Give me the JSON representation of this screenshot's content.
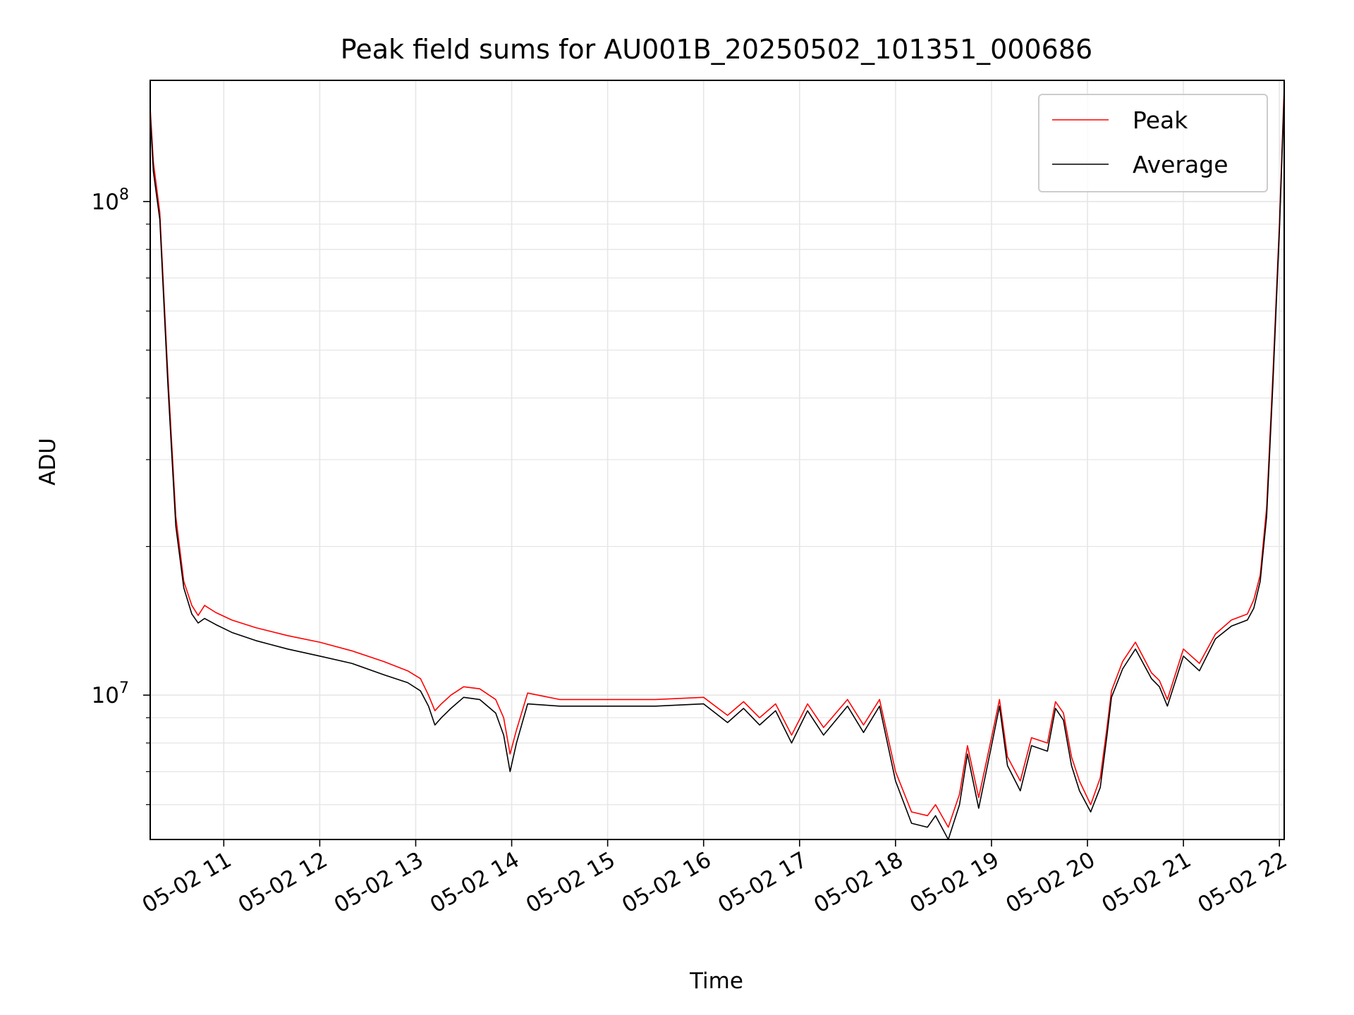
{
  "chart_data": {
    "type": "line",
    "title": "Peak field sums for AU001B_20250502_101351_000686",
    "xlabel": "Time",
    "ylabel": "ADU",
    "yscale": "log",
    "xlim": [
      "2025-05-02 10:14",
      "2025-05-02 22:03"
    ],
    "ylim": [
      5100000,
      176000000
    ],
    "grid": true,
    "legend_position": "top-right",
    "x_ticks": [
      "05-02 11",
      "05-02 12",
      "05-02 13",
      "05-02 14",
      "05-02 15",
      "05-02 16",
      "05-02 17",
      "05-02 18",
      "05-02 19",
      "05-02 20",
      "05-02 21",
      "05-02 22"
    ],
    "x_tick_hours": [
      11,
      12,
      13,
      14,
      15,
      16,
      17,
      18,
      19,
      20,
      21,
      22
    ],
    "y_ticks": [
      {
        "value": 10000000,
        "base": "10",
        "exp": "7"
      },
      {
        "value": 100000000,
        "base": "10",
        "exp": "8"
      }
    ],
    "series": [
      {
        "name": "Peak",
        "color": "#ff0000",
        "x": [
          "10:14",
          "10:16",
          "10:20",
          "10:25",
          "10:30",
          "10:35",
          "10:40",
          "10:44",
          "10:48",
          "10:55",
          "11:05",
          "11:20",
          "11:40",
          "12:00",
          "12:20",
          "12:40",
          "12:55",
          "13:03",
          "13:08",
          "13:12",
          "13:16",
          "13:22",
          "13:30",
          "13:40",
          "13:50",
          "13:55",
          "13:59",
          "14:03",
          "14:10",
          "14:30",
          "15:00",
          "15:30",
          "16:00",
          "16:15",
          "16:25",
          "16:35",
          "16:45",
          "16:55",
          "17:05",
          "17:15",
          "17:30",
          "17:40",
          "17:50",
          "18:00",
          "18:10",
          "18:20",
          "18:25",
          "18:33",
          "18:40",
          "18:45",
          "18:52",
          "19:00",
          "19:05",
          "19:10",
          "19:18",
          "19:25",
          "19:35",
          "19:40",
          "19:45",
          "19:50",
          "19:55",
          "20:02",
          "20:08",
          "20:12",
          "20:15",
          "20:22",
          "20:30",
          "20:40",
          "20:45",
          "20:50",
          "21:00",
          "21:10",
          "21:20",
          "21:30",
          "21:40",
          "21:44",
          "21:48",
          "21:52",
          "21:56",
          "22:00",
          "22:03"
        ],
        "y": [
          155000000,
          120000000,
          95000000,
          45000000,
          23000000,
          17000000,
          15200000,
          14500000,
          15200000,
          14700000,
          14200000,
          13700000,
          13200000,
          12800000,
          12300000,
          11700000,
          11200000,
          10800000,
          10000000,
          9300000,
          9600000,
          10000000,
          10400000,
          10300000,
          9800000,
          9000000,
          7600000,
          8500000,
          10100000,
          9800000,
          9800000,
          9800000,
          9900000,
          9100000,
          9700000,
          9000000,
          9600000,
          8300000,
          9600000,
          8600000,
          9800000,
          8700000,
          9800000,
          7000000,
          5800000,
          5700000,
          6000000,
          5400000,
          6300000,
          7900000,
          6200000,
          8200000,
          9800000,
          7500000,
          6700000,
          8200000,
          8000000,
          9700000,
          9200000,
          7500000,
          6700000,
          6000000,
          6800000,
          8500000,
          10200000,
          11700000,
          12800000,
          11100000,
          10700000,
          9800000,
          12400000,
          11600000,
          13300000,
          14200000,
          14600000,
          15600000,
          17500000,
          24000000,
          45000000,
          90000000,
          170000000
        ]
      },
      {
        "name": "Average",
        "color": "#000000",
        "x": [
          "10:14",
          "10:16",
          "10:20",
          "10:25",
          "10:30",
          "10:35",
          "10:40",
          "10:44",
          "10:48",
          "10:55",
          "11:05",
          "11:20",
          "11:40",
          "12:00",
          "12:20",
          "12:40",
          "12:55",
          "13:03",
          "13:08",
          "13:12",
          "13:16",
          "13:22",
          "13:30",
          "13:40",
          "13:50",
          "13:55",
          "13:59",
          "14:03",
          "14:10",
          "14:30",
          "15:00",
          "15:30",
          "16:00",
          "16:15",
          "16:25",
          "16:35",
          "16:45",
          "16:55",
          "17:05",
          "17:15",
          "17:30",
          "17:40",
          "17:50",
          "18:00",
          "18:10",
          "18:20",
          "18:25",
          "18:33",
          "18:40",
          "18:45",
          "18:52",
          "19:00",
          "19:05",
          "19:10",
          "19:18",
          "19:25",
          "19:35",
          "19:40",
          "19:45",
          "19:50",
          "19:55",
          "20:02",
          "20:08",
          "20:12",
          "20:15",
          "20:22",
          "20:30",
          "20:40",
          "20:45",
          "20:50",
          "21:00",
          "21:10",
          "21:20",
          "21:30",
          "21:40",
          "21:44",
          "21:48",
          "21:52",
          "21:56",
          "22:00",
          "22:03"
        ],
        "y": [
          150000000,
          115000000,
          92000000,
          43000000,
          22000000,
          16500000,
          14600000,
          14000000,
          14300000,
          13900000,
          13400000,
          12900000,
          12400000,
          12000000,
          11600000,
          11000000,
          10600000,
          10200000,
          9500000,
          8700000,
          9000000,
          9400000,
          9900000,
          9800000,
          9200000,
          8300000,
          7000000,
          8000000,
          9600000,
          9500000,
          9500000,
          9500000,
          9600000,
          8800000,
          9400000,
          8700000,
          9300000,
          8000000,
          9300000,
          8300000,
          9500000,
          8400000,
          9500000,
          6700000,
          5500000,
          5400000,
          5700000,
          5100000,
          6000000,
          7600000,
          5900000,
          7900000,
          9500000,
          7200000,
          6400000,
          7900000,
          7700000,
          9400000,
          8900000,
          7200000,
          6400000,
          5800000,
          6500000,
          8200000,
          9900000,
          11300000,
          12400000,
          10800000,
          10400000,
          9500000,
          12000000,
          11200000,
          13000000,
          13800000,
          14200000,
          15000000,
          17000000,
          23000000,
          43000000,
          87000000,
          165000000
        ]
      }
    ]
  }
}
